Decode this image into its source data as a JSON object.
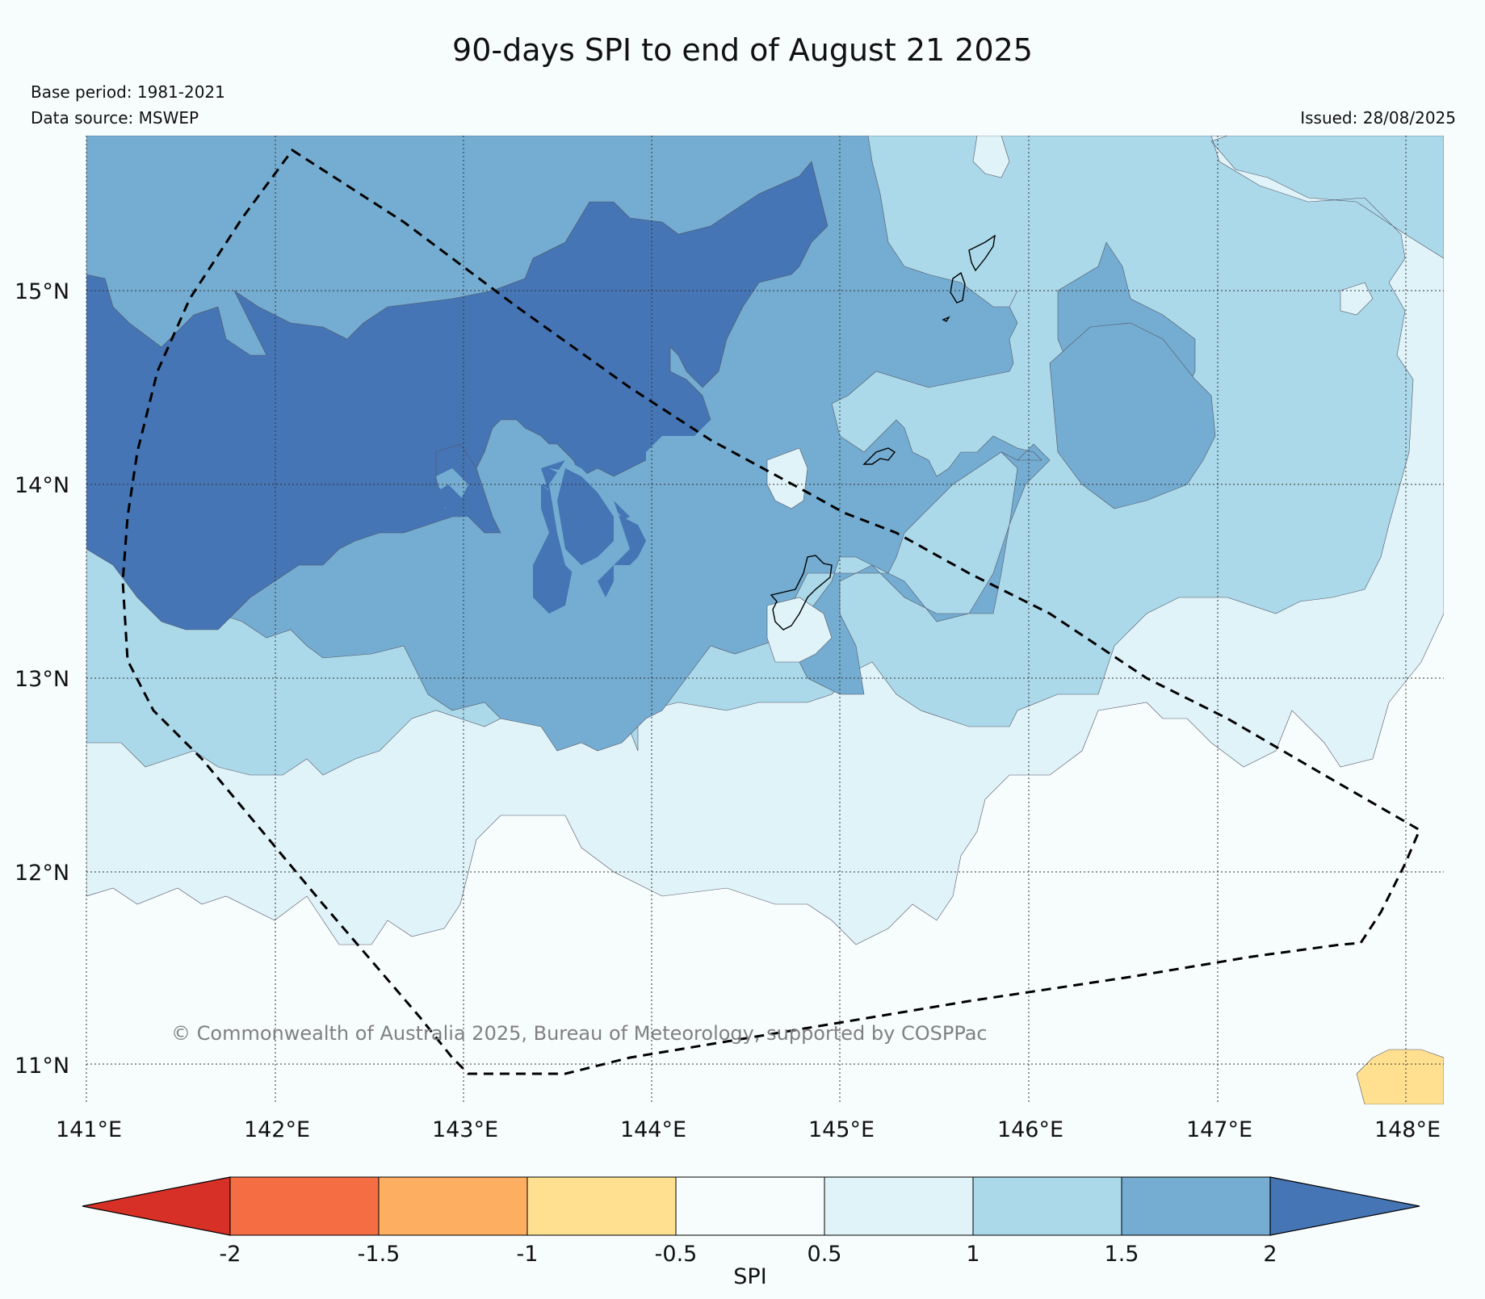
{
  "title": "90-days SPI to end of August 21 2025",
  "base_period": "Base period: 1981-2021",
  "data_source": "Data source: MSWEP",
  "issued": "Issued: 28/08/2025",
  "copyright": "© Commonwealth of Australia 2025, Bureau of Meteorology, supported by COSPPac",
  "latitude_labels": [
    "15°N",
    "14°N",
    "13°N",
    "12°N",
    "11°N"
  ],
  "longitude_labels": [
    "141°E",
    "142°E",
    "143°E",
    "144°E",
    "145°E",
    "146°E",
    "147°E",
    "148°E"
  ],
  "colorbar": {
    "label": "SPI",
    "ticks": [
      "-2",
      "-1.5",
      "-1",
      "-0.5",
      "0.5",
      "1",
      "1.5",
      "2"
    ],
    "colors": [
      "#d73027",
      "#f46d43",
      "#fdae61",
      "#fee090",
      "#f7fcfd",
      "#e0f3f8",
      "#abd9e9",
      "#74add1",
      "#4575b4"
    ]
  },
  "legend_colors": {
    "spi_0_5_to_1": "#e0f3f8",
    "spi_1_to_1_5": "#abd9e9",
    "spi_1_5_to_2": "#74add1",
    "spi_above_2": "#4575b4",
    "spi_neg1_to_neg0_5": "#fee090"
  }
}
